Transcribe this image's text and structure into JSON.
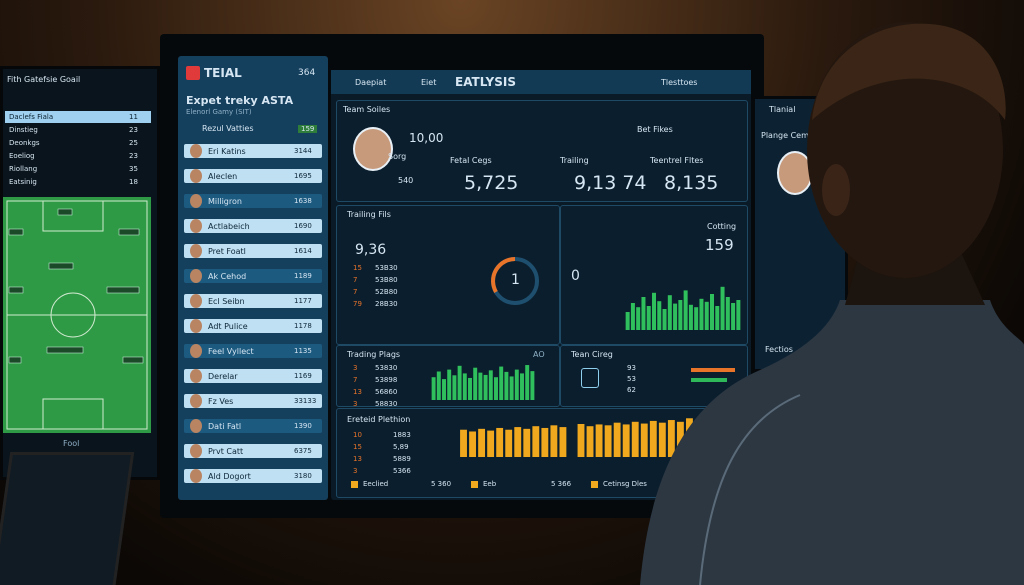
{
  "left_screen": {
    "title": "Fith Gatefsie Goail",
    "rows": [
      {
        "name": "Daclefs Fiala",
        "value": "11"
      },
      {
        "name": "Dinstieg",
        "value": "23"
      },
      {
        "name": "Deonkgs",
        "value": "25"
      },
      {
        "name": "Eoeliog",
        "value": "23"
      },
      {
        "name": "Riollang",
        "value": "35"
      },
      {
        "name": "Eatsinig",
        "value": "18"
      }
    ],
    "footer": "Fool"
  },
  "sidebar": {
    "brand": "TEIAL",
    "search": "364",
    "heading": "Expet treky ASTA",
    "subheading": "Elenorl Gamy (SIT)",
    "filter": "Rezul Vatties",
    "filter_count": "159",
    "players": [
      {
        "name": "Eri Katins",
        "value": "3144"
      },
      {
        "name": "Aleclen",
        "value": "1695"
      },
      {
        "name": "Milligron",
        "value": "1638"
      },
      {
        "name": "Actlabeich",
        "value": "1690"
      },
      {
        "name": "Pret Foatl",
        "value": "1614"
      },
      {
        "name": "Ak Cehod",
        "value": "1189"
      },
      {
        "name": "Ecl Seibn",
        "value": "1177"
      },
      {
        "name": "Adt Pulice",
        "value": "1178"
      },
      {
        "name": "Feel Vyllect",
        "value": "1135"
      },
      {
        "name": "Derelar",
        "value": "1169"
      },
      {
        "name": "Fz Ves",
        "value": "33133"
      },
      {
        "name": "Dati Fatl",
        "value": "1390"
      },
      {
        "name": "Prvt Catt",
        "value": "6375"
      },
      {
        "name": "Ald Dogort",
        "value": "3180"
      }
    ]
  },
  "header": {
    "tab1": "Daepiat",
    "tab2": "Eiet",
    "title": "EATLYSIS",
    "search": "Tlesttoes"
  },
  "team_stats": {
    "title": "Team Soiles",
    "filter": "Bet Fikes",
    "score": "10,00",
    "cards": [
      {
        "label": "Sorg",
        "value": "540"
      },
      {
        "label": "Fetal Cegs",
        "value": "5,725"
      },
      {
        "label": "Trailing",
        "value": "9,13 74"
      },
      {
        "label": "Teentrel Fltes",
        "value": "8,135"
      }
    ]
  },
  "trailing": {
    "title": "Trailing Fils",
    "value": "9,36",
    "rows": [
      [
        "15",
        "53B30"
      ],
      [
        "7",
        "53B80"
      ],
      [
        "7",
        "52B80"
      ],
      [
        "79",
        "28B30"
      ]
    ],
    "gauges": [
      "1",
      "0"
    ]
  },
  "cotting": {
    "title": "Cotting",
    "value": "159",
    "ylim": [
      0,
      100
    ],
    "values": [
      30,
      45,
      38,
      55,
      40,
      62,
      48,
      35,
      58,
      44,
      50,
      66,
      42,
      38,
      52,
      47,
      60,
      40,
      72,
      55,
      45,
      50
    ]
  },
  "trading": {
    "title": "Trading Plags",
    "marker": "AO",
    "rows": [
      [
        "3",
        "53830"
      ],
      [
        "7",
        "53898"
      ],
      [
        "13",
        "56860"
      ],
      [
        "3",
        "58830"
      ]
    ],
    "ylim": [
      0,
      100
    ],
    "values": [
      60,
      75,
      55,
      80,
      65,
      90,
      70,
      58,
      85,
      72,
      66,
      78,
      60,
      88,
      74,
      62,
      80,
      70,
      92,
      76
    ]
  },
  "team_card": {
    "title": "Tean Cireg",
    "rows": [
      "93",
      "53",
      "62"
    ]
  },
  "plethion": {
    "title": "Ereteid Plethion",
    "rows": [
      [
        "10",
        "1883"
      ],
      [
        "15",
        "5,89"
      ],
      [
        "13",
        "5889"
      ],
      [
        "3",
        "5366"
      ]
    ],
    "legend": [
      {
        "label": "Eeclied",
        "value": "5 360"
      },
      {
        "label": "Eeb",
        "value": "5 366"
      },
      {
        "label": "Cetinsg Dles",
        "value": "5 3 38"
      }
    ],
    "ylim": [
      0,
      100
    ],
    "values": [
      62,
      58,
      64,
      60,
      66,
      62,
      68,
      64,
      70,
      66,
      72,
      68,
      75,
      70,
      74,
      72,
      78,
      74,
      80,
      76,
      82,
      78,
      84,
      80,
      88,
      85
    ]
  },
  "right_screen": {
    "brand": "Tlanial",
    "heading": "Plange Cemog",
    "footer": "Fectios"
  }
}
